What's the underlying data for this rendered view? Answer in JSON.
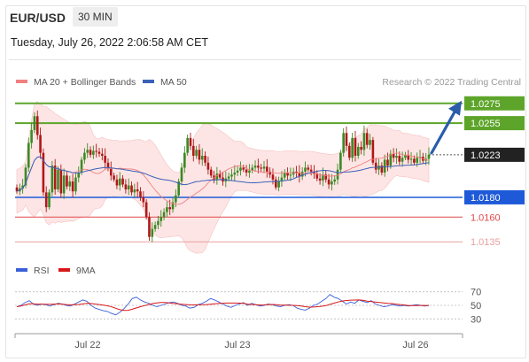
{
  "header": {
    "symbol": "EUR/USD",
    "timeframe": "30 MIN",
    "datetime": "Tuesday, July 26, 2022 2:06:58 AM CET"
  },
  "legend": {
    "bollinger": "MA 20 + Bollinger Bands",
    "ma50": "MA 50",
    "credit": "Research © 2022 Trading Central",
    "rsi": "RSI",
    "ma9": "9MA"
  },
  "colors": {
    "bull": "#3a8a24",
    "bear": "#b01818",
    "band_fill": "#fde0e0",
    "ma20": "#f08080",
    "ma50": "#3a60b8",
    "resistance": "#5da52a",
    "support": "#1e5ad8",
    "support_minor": "#e04848",
    "support_minor2": "#e8a0a0",
    "current": "#222222",
    "rsi": "#3a60d8",
    "rsi_ma": "#d81818",
    "arrow": "#2a5caa"
  },
  "chart_data": {
    "type": "candlestick",
    "price_range": [
      1.012,
      1.029
    ],
    "x_tick_labels": [
      "Jul 22",
      "Jul 23",
      "Jul 26"
    ],
    "levels": [
      {
        "value": 1.0275,
        "label": "1.0275",
        "kind": "resistance"
      },
      {
        "value": 1.0255,
        "label": "1.0255",
        "kind": "resistance"
      },
      {
        "value": 1.0223,
        "label": "1.0223",
        "kind": "current"
      },
      {
        "value": 1.018,
        "label": "1.0180",
        "kind": "support"
      },
      {
        "value": 1.016,
        "label": "1.0160",
        "kind": "support_minor"
      },
      {
        "value": 1.0135,
        "label": "1.0135",
        "kind": "support_minor2"
      }
    ],
    "forecast_arrow": {
      "from": 1.0223,
      "to": 1.0275
    },
    "closes": [
      1.0186,
      1.0189,
      1.0192,
      1.021,
      1.0235,
      1.0248,
      1.0262,
      1.0243,
      1.0225,
      1.0185,
      1.017,
      1.0185,
      1.0212,
      1.0188,
      1.0208,
      1.0184,
      1.0202,
      1.0191,
      1.0196,
      1.0186,
      1.02,
      1.0205,
      1.0218,
      1.0225,
      1.0228,
      1.0223,
      1.0227,
      1.0226,
      1.0224,
      1.0222,
      1.0215,
      1.021,
      1.0202,
      1.0198,
      1.0192,
      1.0199,
      1.0193,
      1.0188,
      1.0192,
      1.0185,
      1.0188,
      1.0186,
      1.018,
      1.0175,
      1.016,
      1.014,
      1.0148,
      1.0152,
      1.0156,
      1.016,
      1.0165,
      1.017,
      1.0168,
      1.0175,
      1.0182,
      1.0196,
      1.021,
      1.0225,
      1.024,
      1.0232,
      1.0222,
      1.0228,
      1.0218,
      1.0222,
      1.0215,
      1.0208,
      1.0202,
      1.0198,
      1.0204,
      1.02,
      1.0196,
      1.0199,
      1.0201,
      1.0203,
      1.0205,
      1.0207,
      1.021,
      1.0208,
      1.0205,
      1.0207,
      1.021,
      1.0212,
      1.021,
      1.0209,
      1.0211,
      1.0206,
      1.0203,
      1.0198,
      1.019,
      1.0196,
      1.02,
      1.0205,
      1.0202,
      1.0203,
      1.0206,
      1.0205,
      1.0201,
      1.0206,
      1.021,
      1.0208,
      1.0206,
      1.0204,
      1.0199,
      1.0197,
      1.0203,
      1.0198,
      1.0193,
      1.0196,
      1.0198,
      1.0208,
      1.0225,
      1.0245,
      1.0232,
      1.022,
      1.024,
      1.0222,
      1.0231,
      1.0228,
      1.0245,
      1.0233,
      1.0238,
      1.0215,
      1.0208,
      1.0212,
      1.0205,
      1.0218,
      1.0212,
      1.0224,
      1.022,
      1.0222,
      1.0216,
      1.022,
      1.0223,
      1.0218,
      1.0219,
      1.0215,
      1.022,
      1.0221,
      1.0217,
      1.0219,
      1.0223
    ],
    "rsi_range": [
      20,
      80
    ],
    "rsi_levels": [
      70,
      50,
      30
    ],
    "rsi": [
      48,
      50,
      54,
      57,
      52,
      50,
      52,
      51,
      49,
      51,
      53,
      52,
      50,
      49,
      52,
      55,
      58,
      56,
      50,
      46,
      44,
      42,
      41,
      38,
      36,
      40,
      45,
      52,
      60,
      62,
      58,
      55,
      53,
      50,
      48,
      50,
      52,
      54,
      55,
      53,
      50,
      49,
      46,
      47,
      51,
      53,
      56,
      60,
      58,
      55,
      52,
      49,
      47,
      50,
      52,
      54,
      50,
      53,
      51,
      49,
      50,
      52,
      51,
      49,
      48,
      50,
      51,
      50,
      46,
      44,
      43,
      46,
      50,
      52,
      56,
      60,
      66,
      62,
      60,
      56,
      52,
      55,
      53,
      58,
      56,
      54,
      57,
      52,
      50,
      48,
      49,
      51,
      50,
      49,
      50,
      49,
      50,
      51,
      50,
      49,
      50
    ]
  }
}
